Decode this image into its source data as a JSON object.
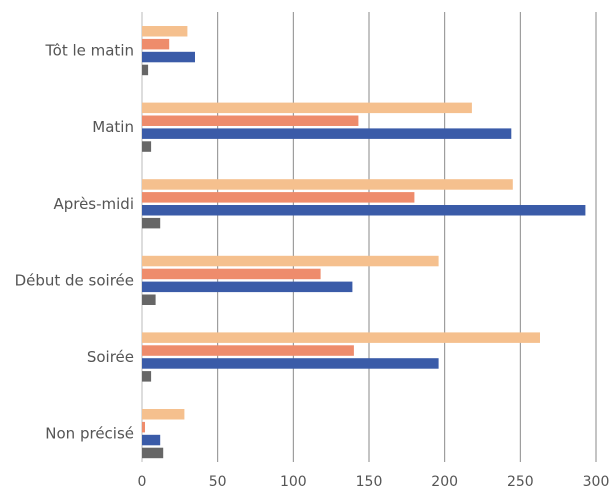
{
  "chart_data": {
    "type": "bar",
    "orientation": "horizontal",
    "title": "",
    "xlabel": "",
    "ylabel": "",
    "categories": [
      "Tôt le matin",
      "Matin",
      "Après-midi",
      "Début de soirée",
      "Soirée",
      "Non précisé"
    ],
    "series": [
      {
        "color": "#f5c08e",
        "values": [
          30,
          218,
          245,
          196,
          263,
          28
        ]
      },
      {
        "color": "#ee8c6c",
        "values": [
          18,
          143,
          180,
          118,
          140,
          2
        ]
      },
      {
        "color": "#3a5ba8",
        "values": [
          35,
          244,
          293,
          139,
          196,
          12
        ]
      },
      {
        "color": "#666666",
        "values": [
          4,
          6,
          12,
          9,
          6,
          14
        ]
      }
    ],
    "xlim": [
      0,
      300
    ],
    "xticks": [
      "0",
      "50",
      "100",
      "150",
      "200",
      "250",
      "300"
    ],
    "grid": "vertical",
    "legend": "none"
  }
}
